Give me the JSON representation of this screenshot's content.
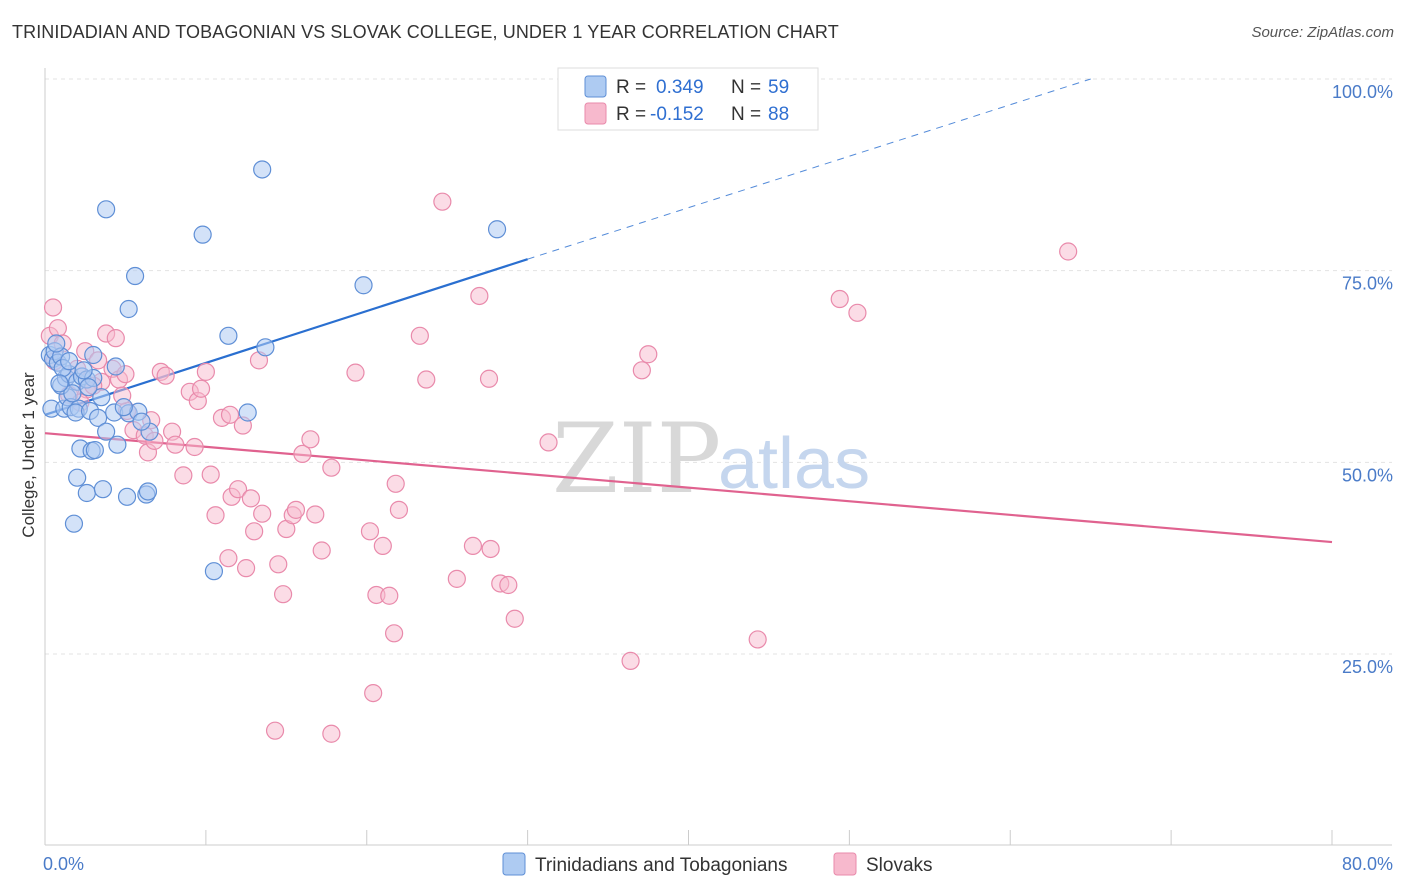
{
  "title": "TRINIDADIAN AND TOBAGONIAN VS SLOVAK COLLEGE, UNDER 1 YEAR CORRELATION CHART",
  "source": "Source: ZipAtlas.com",
  "watermark": {
    "zip": "ZIP",
    "atlas": "atlas"
  },
  "legend": {
    "rows": [
      {
        "r_label": "R =",
        "r_value": "0.349",
        "n_label": "N =",
        "n_value": "59",
        "color": "#aecbf2"
      },
      {
        "r_label": "R =",
        "r_value": "-0.152",
        "n_label": "N =",
        "n_value": "88",
        "color": "#f7b9cd"
      }
    ]
  },
  "chart_data": {
    "type": "scatter",
    "xlabel": "",
    "ylabel": "College, Under 1 year",
    "xlim": [
      0,
      80
    ],
    "ylim": [
      0,
      104
    ],
    "x_tick_labels": [
      "0.0%",
      "80.0%"
    ],
    "y_ticks": [
      {
        "value": 25,
        "label": "25.0%"
      },
      {
        "value": 50,
        "label": "50.0%"
      },
      {
        "value": 75,
        "label": "75.0%"
      },
      {
        "value": 100,
        "label": "100.0%"
      }
    ],
    "grid": true,
    "series": [
      {
        "name": "Trinidadians and Tobagonians",
        "color": "#aecbf2",
        "stroke": "#5f8fd6",
        "line_color": "#2a6fd0",
        "trend": {
          "x0": 0,
          "y0": 56.2,
          "x1": 30,
          "y1": 76.5,
          "dash_to_x": 65,
          "dash_to_y": 100
        },
        "points": [
          [
            0.3,
            64
          ],
          [
            0.5,
            63.5
          ],
          [
            0.6,
            64.5
          ],
          [
            0.8,
            63
          ],
          [
            1.0,
            63.8
          ],
          [
            0.4,
            57
          ],
          [
            1.2,
            57
          ],
          [
            1.4,
            58.5
          ],
          [
            1.6,
            57.2
          ],
          [
            2.1,
            57
          ],
          [
            1.0,
            60
          ],
          [
            1.3,
            61
          ],
          [
            1.5,
            61.5
          ],
          [
            2.0,
            60.5
          ],
          [
            2.3,
            61.2
          ],
          [
            2.6,
            60.8
          ],
          [
            3.0,
            61
          ],
          [
            1.9,
            56.5
          ],
          [
            2.8,
            56.7
          ],
          [
            3.3,
            55.8
          ],
          [
            4.3,
            56.5
          ],
          [
            5.2,
            56.4
          ],
          [
            5.8,
            56.6
          ],
          [
            4.4,
            62.5
          ],
          [
            3.0,
            64
          ],
          [
            3.8,
            54
          ],
          [
            4.5,
            52.3
          ],
          [
            6.5,
            54
          ],
          [
            2.2,
            51.8
          ],
          [
            2.9,
            51.5
          ],
          [
            3.1,
            51.6
          ],
          [
            2.0,
            48
          ],
          [
            2.6,
            46
          ],
          [
            3.6,
            46.5
          ],
          [
            5.1,
            45.5
          ],
          [
            6.3,
            45.8
          ],
          [
            6.4,
            46.2
          ],
          [
            1.8,
            42
          ],
          [
            10.5,
            35.8
          ],
          [
            3.8,
            83
          ],
          [
            5.6,
            74.3
          ],
          [
            5.2,
            70
          ],
          [
            9.8,
            79.7
          ],
          [
            13.5,
            88.2
          ],
          [
            11.4,
            66.5
          ],
          [
            13.7,
            65
          ],
          [
            12.6,
            56.5
          ],
          [
            19.8,
            73.1
          ],
          [
            28.1,
            80.4
          ],
          [
            0.7,
            65.5
          ],
          [
            1.1,
            62.3
          ],
          [
            1.7,
            59
          ],
          [
            2.4,
            62
          ],
          [
            3.5,
            58.5
          ],
          [
            4.9,
            57.2
          ],
          [
            0.9,
            60.3
          ],
          [
            1.5,
            63.2
          ],
          [
            2.7,
            59.8
          ],
          [
            6.0,
            55.3
          ]
        ]
      },
      {
        "name": "Slovaks",
        "color": "#f7b9cd",
        "stroke": "#e98aab",
        "line_color": "#e0628f",
        "trend": {
          "x0": 0,
          "y0": 53.8,
          "x1": 80,
          "y1": 39.6
        },
        "points": [
          [
            0.3,
            66.5
          ],
          [
            0.5,
            70.2
          ],
          [
            0.8,
            67.5
          ],
          [
            1.1,
            65.5
          ],
          [
            0.6,
            63.2
          ],
          [
            2.0,
            62.2
          ],
          [
            2.5,
            64.5
          ],
          [
            3.3,
            63.3
          ],
          [
            3.5,
            60.5
          ],
          [
            4.2,
            62.2
          ],
          [
            3.8,
            66.8
          ],
          [
            4.4,
            66.2
          ],
          [
            4.6,
            60.8
          ],
          [
            5.0,
            61.5
          ],
          [
            2.6,
            59.5
          ],
          [
            3.0,
            60
          ],
          [
            5.1,
            56.7
          ],
          [
            5.5,
            54.2
          ],
          [
            6.2,
            53.5
          ],
          [
            6.4,
            51.3
          ],
          [
            6.6,
            55.5
          ],
          [
            7.2,
            61.8
          ],
          [
            7.5,
            61.3
          ],
          [
            7.9,
            54
          ],
          [
            8.1,
            52.3
          ],
          [
            8.6,
            48.3
          ],
          [
            9.0,
            59.2
          ],
          [
            9.5,
            58
          ],
          [
            9.7,
            59.6
          ],
          [
            10.0,
            61.8
          ],
          [
            10.3,
            48.4
          ],
          [
            10.6,
            43.1
          ],
          [
            11.0,
            55.8
          ],
          [
            11.5,
            56.2
          ],
          [
            11.6,
            45.5
          ],
          [
            12.0,
            46.5
          ],
          [
            12.3,
            54.8
          ],
          [
            12.8,
            45.3
          ],
          [
            13.0,
            41
          ],
          [
            13.3,
            63.3
          ],
          [
            13.5,
            43.3
          ],
          [
            11.4,
            37.5
          ],
          [
            12.5,
            36.2
          ],
          [
            14.5,
            36.7
          ],
          [
            15.0,
            41.3
          ],
          [
            15.4,
            43.1
          ],
          [
            15.6,
            43.8
          ],
          [
            16.0,
            51.1
          ],
          [
            16.5,
            53
          ],
          [
            16.8,
            43.2
          ],
          [
            17.2,
            38.5
          ],
          [
            17.8,
            49.3
          ],
          [
            14.8,
            32.8
          ],
          [
            19.3,
            61.7
          ],
          [
            20.2,
            41
          ],
          [
            21.0,
            39.1
          ],
          [
            20.6,
            32.7
          ],
          [
            21.4,
            32.6
          ],
          [
            21.8,
            47.2
          ],
          [
            22.0,
            43.8
          ],
          [
            21.7,
            27.7
          ],
          [
            20.4,
            19.9
          ],
          [
            23.3,
            66.5
          ],
          [
            23.7,
            60.8
          ],
          [
            24.7,
            84
          ],
          [
            25.6,
            34.8
          ],
          [
            26.6,
            39.1
          ],
          [
            27.0,
            71.7
          ],
          [
            27.6,
            60.9
          ],
          [
            27.7,
            38.7
          ],
          [
            28.3,
            34.2
          ],
          [
            28.8,
            34
          ],
          [
            29.2,
            29.6
          ],
          [
            31.3,
            52.6
          ],
          [
            36.4,
            24.1
          ],
          [
            37.1,
            62
          ],
          [
            37.5,
            64.1
          ],
          [
            44.3,
            26.9
          ],
          [
            49.4,
            71.3
          ],
          [
            50.5,
            69.5
          ],
          [
            63.6,
            77.5
          ],
          [
            14.3,
            15
          ],
          [
            17.8,
            14.6
          ],
          [
            1.5,
            58.8
          ],
          [
            2.2,
            57.8
          ],
          [
            6.8,
            52.8
          ],
          [
            9.3,
            52
          ],
          [
            4.8,
            58.7
          ]
        ]
      }
    ]
  }
}
